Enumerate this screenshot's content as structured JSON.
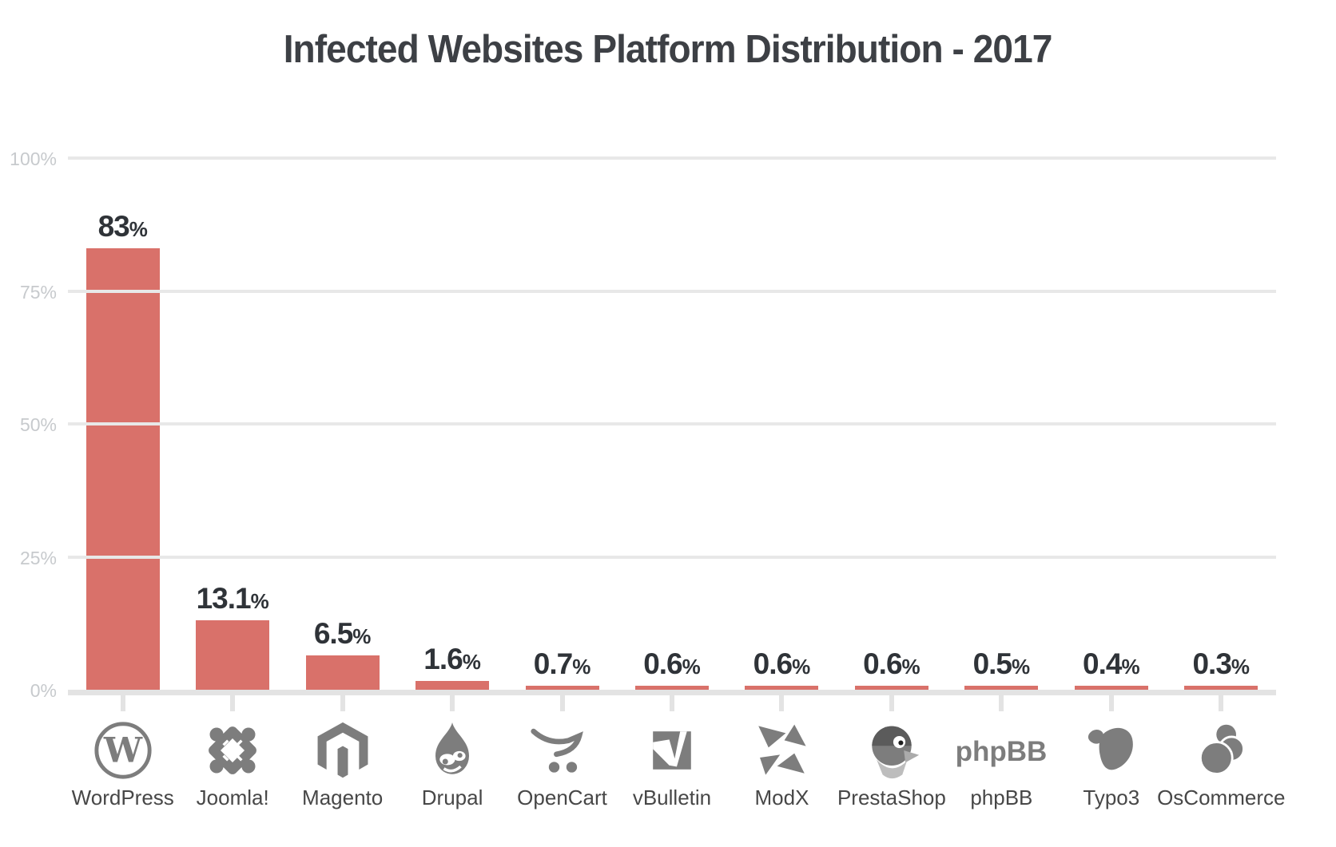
{
  "chart": {
    "title": "Infected Websites Platform Distribution - 2017",
    "colors": {
      "bar": "#d9716a",
      "title": "#3d4045",
      "axis_label": "#c7cacd",
      "gridline": "#e8e8e8",
      "axis_line": "#e3e3e3",
      "icon": "#7d7d7d",
      "category_label": "#474747",
      "value_label": "#2f3338"
    },
    "icon_text": {
      "wordpress": "W",
      "phpbb": "phpBB"
    }
  },
  "chart_data": {
    "type": "bar",
    "title": "Infected Websites Platform Distribution - 2017",
    "categories": [
      "WordPress",
      "Joomla!",
      "Magento",
      "Drupal",
      "OpenCart",
      "vBulletin",
      "ModX",
      "PrestaShop",
      "phpBB",
      "Typo3",
      "OsCommerce"
    ],
    "values": [
      83,
      13.1,
      6.5,
      1.6,
      0.7,
      0.6,
      0.6,
      0.6,
      0.5,
      0.4,
      0.3
    ],
    "value_labels": [
      "83",
      "13.1",
      "6.5",
      "1.6",
      "0.7",
      "0.6",
      "0.6",
      "0.6",
      "0.5",
      "0.4",
      "0.3"
    ],
    "value_suffix": "%",
    "icons": [
      "wordpress-icon",
      "joomla-icon",
      "magento-icon",
      "drupal-icon",
      "opencart-icon",
      "vbulletin-icon",
      "modx-icon",
      "prestashop-icon",
      "phpbb-icon",
      "typo3-icon",
      "oscommerce-icon"
    ],
    "xlabel": "",
    "ylabel": "",
    "ylim": [
      0,
      100
    ],
    "y_ticks": [
      0,
      25,
      50,
      75,
      100
    ],
    "y_tick_labels": [
      "0%",
      "25%",
      "50%",
      "75%",
      "100%"
    ],
    "grid": true,
    "legend": false,
    "bar_color": "#d9716a"
  }
}
